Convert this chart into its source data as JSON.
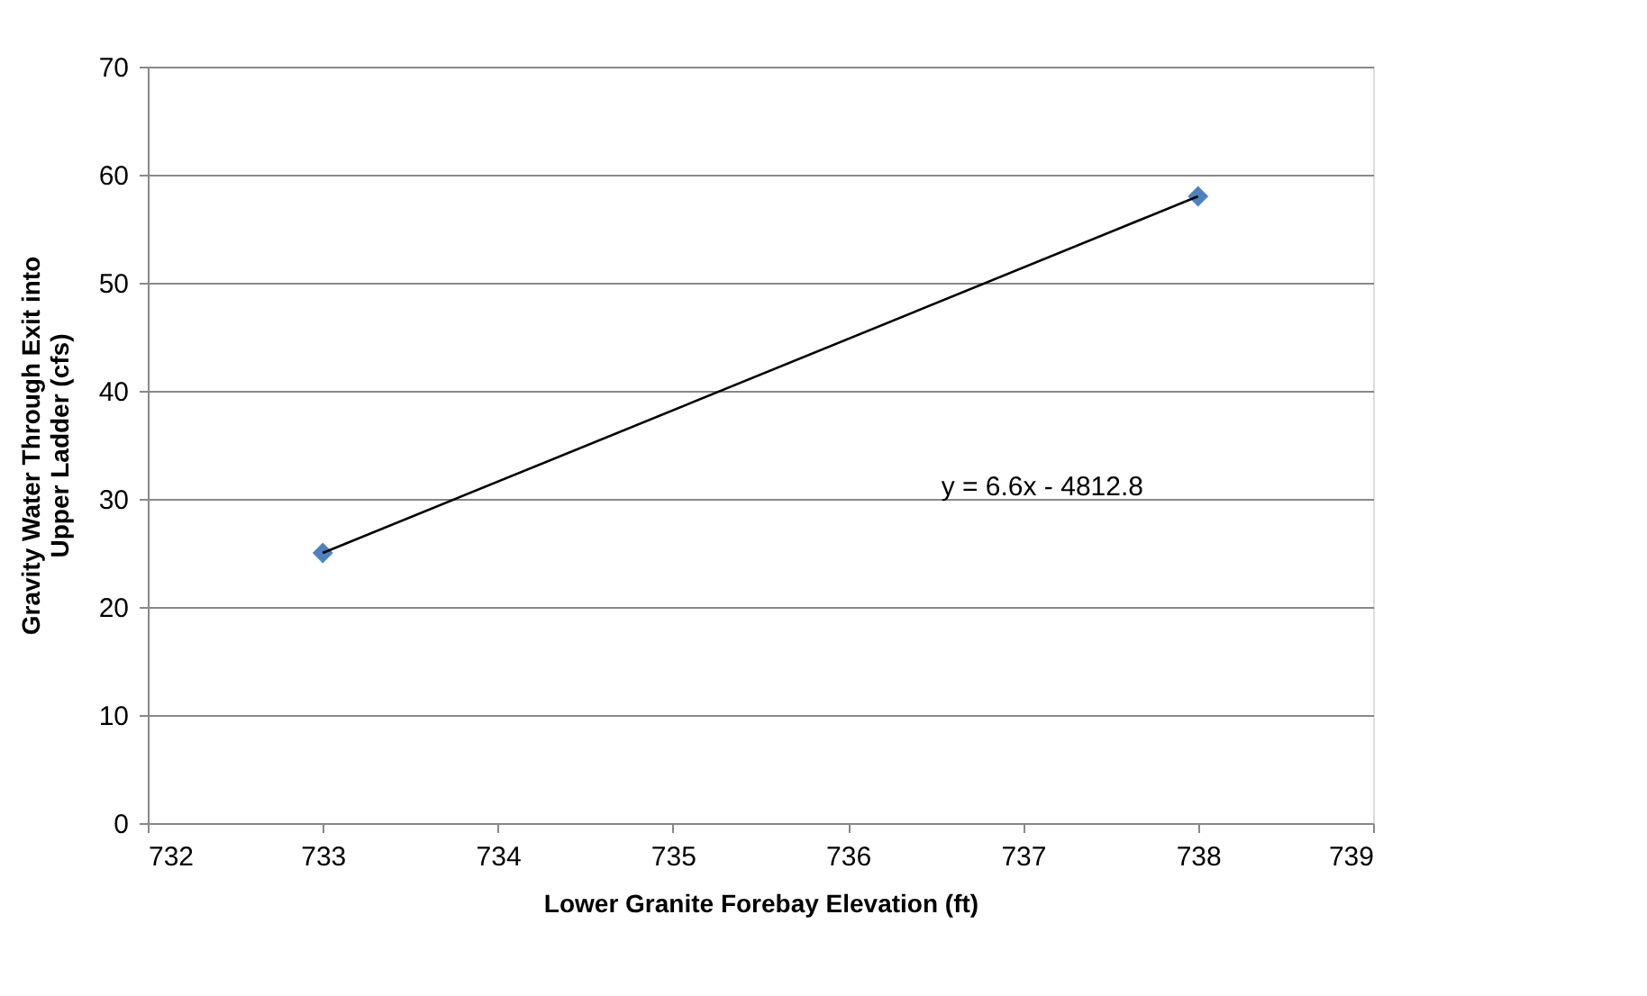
{
  "chart_data": {
    "type": "scatter",
    "xlabel": "Lower Granite Forebay Elevation (ft)",
    "ylabel": "Gravity Water Through Exit into Upper Ladder (cfs)",
    "x": [
      733,
      738
    ],
    "series": [
      {
        "color": "#4f81bd",
        "marker": "diamond",
        "values": [
          25,
          58
        ]
      },
      {
        "type": "line",
        "color": "#000000",
        "marker": "none",
        "line_style": "solid",
        "x": [
          733,
          738
        ],
        "values": [
          25,
          58
        ]
      }
    ],
    "annotations": [
      "y = 6.6x - 4812.8"
    ],
    "xlim": [
      732,
      739
    ],
    "xticks": [
      732,
      733,
      734,
      735,
      736,
      737,
      738,
      739
    ],
    "ylim": [
      0,
      70
    ],
    "yticks": [
      0,
      10,
      20,
      30,
      40,
      50,
      60,
      70
    ],
    "grid": "y"
  }
}
